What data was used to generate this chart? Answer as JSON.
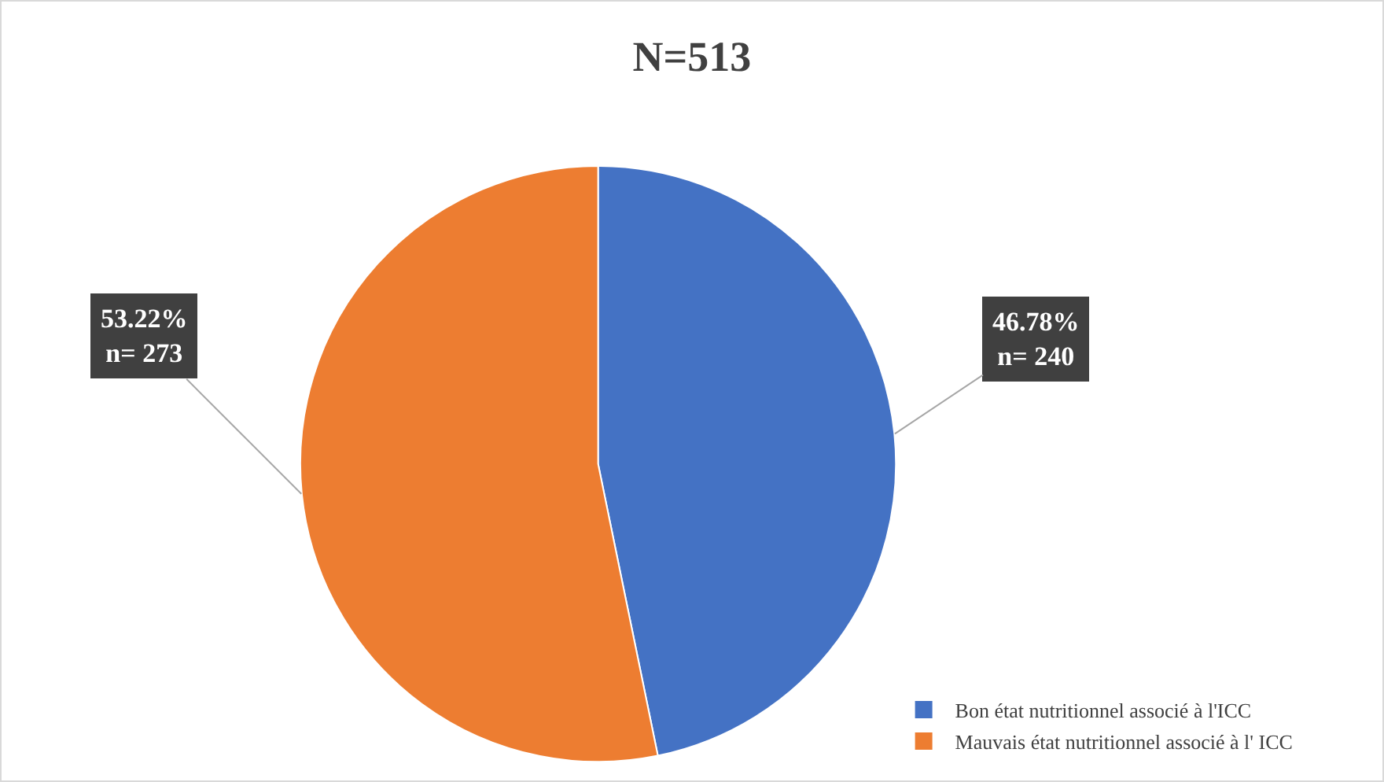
{
  "chart_data": {
    "type": "pie",
    "title": "N=513",
    "categories": [
      "Bon état nutritionnel associé à l'ICC",
      "Mauvais état nutritionnel associé à l' ICC"
    ],
    "values": [
      240,
      273
    ],
    "colors": [
      "#4472c4",
      "#ed7d31"
    ],
    "value_labels": [
      "46.78%\nn= 240",
      "53.22%\nn= 273"
    ],
    "legend": "bottom right"
  }
}
